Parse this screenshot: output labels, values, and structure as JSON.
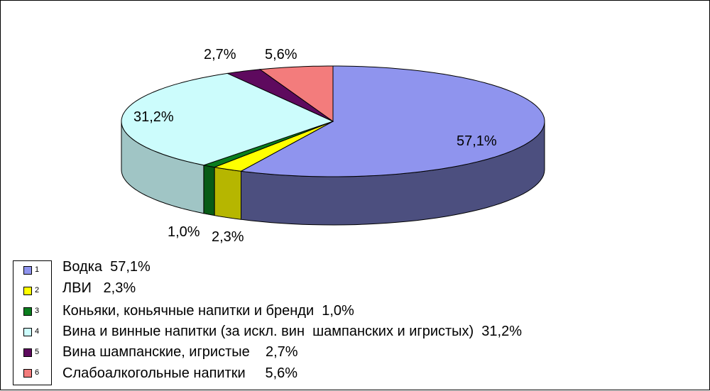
{
  "chart_data": {
    "type": "pie",
    "title": "",
    "categories": [
      "Водка",
      "ЛВИ",
      "Коньяки, коньячные напитки и бренди",
      "Вина и винные напитки (за искл. вин  шампанских и игристых)",
      "Вина шампанские, игристые",
      "Слабоалкогольные напитки"
    ],
    "values": [
      57.1,
      2.3,
      1.0,
      31.2,
      2.7,
      5.6
    ],
    "value_labels": [
      "57,1%",
      "2,3%",
      "1,0%",
      "31,2%",
      "2,7%",
      "5,6%"
    ],
    "colors": [
      "#8f94ee",
      "#ffff00",
      "#0a7d1e",
      "#ccfcfc",
      "#5e0a5e",
      "#f37c7c"
    ],
    "legend": {
      "position": "bottom-left",
      "numbers": [
        "1",
        "2",
        "3",
        "4",
        "5",
        "6"
      ],
      "entries": [
        "Водка  57,1%",
        "ЛВИ   2,3%",
        "Коньяки, коньячные напитки и бренди  1,0%",
        "Вина и винные напитки (за искл. вин  шампанских и игристых)  31,2%",
        "Вина шампанские, игристые    2,7%",
        "Слабоалкогольные напитки     5,6%"
      ]
    },
    "style": "3d-exploded-none"
  }
}
